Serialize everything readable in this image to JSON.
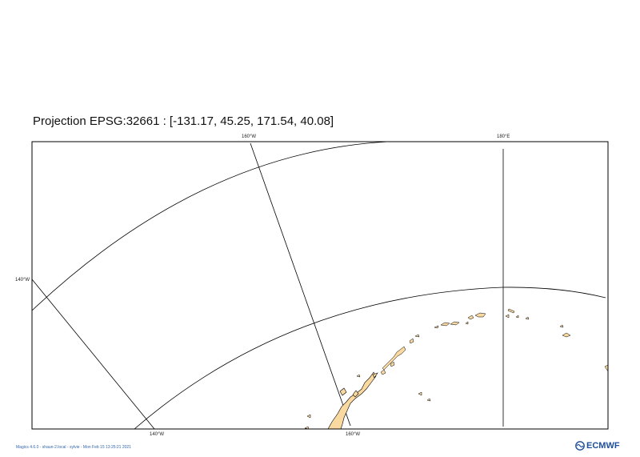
{
  "title": "Projection EPSG:32661 : [-131.17, 45.25, 171.54, 40.08]",
  "grid_labels": {
    "top_left": "160°W",
    "top_right": "180°E",
    "left": "140°W",
    "bottom_left": "140°W",
    "bottom_right": "160°W"
  },
  "footer_text": "Magics 4.6.0 - shaun-2.local - sylvie - Mon Feb 15 13:25:21 2021",
  "logo_text": "ECMWF",
  "colors": {
    "land": "#f9d9a0",
    "coast": "#000000",
    "grid": "#000000",
    "frame": "#000000"
  }
}
